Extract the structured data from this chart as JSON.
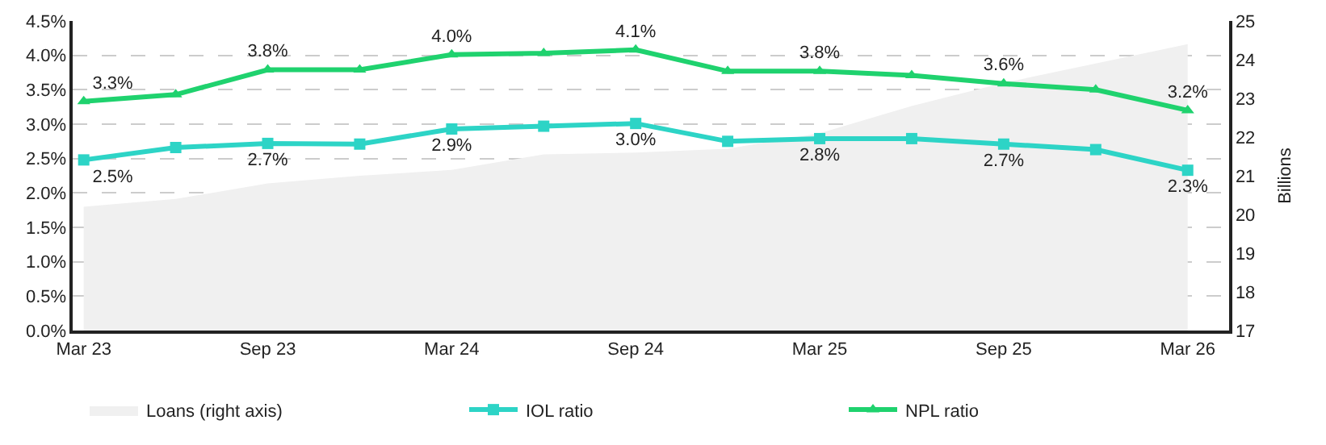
{
  "chart_data": {
    "type": "line",
    "categories": [
      "Mar 23",
      null,
      "Sep 23",
      null,
      "Mar 24",
      null,
      "Sep 24",
      null,
      "Mar 25",
      null,
      "Sep 25",
      null,
      "Mar 26"
    ],
    "series": [
      {
        "name": "Loans (right axis)",
        "type": "area",
        "axis": "y2",
        "color": "#f0f0f0",
        "marker": "none",
        "values": [
          20.2,
          20.4,
          20.8,
          21.0,
          21.15,
          21.55,
          21.6,
          21.7,
          22.1,
          22.8,
          23.4,
          23.9,
          24.4
        ]
      },
      {
        "name": "IOL ratio",
        "color": "#2dd4c6",
        "marker": "square",
        "values": [
          2.48,
          2.66,
          2.72,
          2.71,
          2.93,
          2.97,
          3.01,
          2.75,
          2.79,
          2.79,
          2.71,
          2.63,
          2.33
        ],
        "value_labels": [
          "2.5%",
          null,
          "2.7%",
          null,
          "2.9%",
          null,
          "3.0%",
          null,
          "2.8%",
          null,
          "2.7%",
          null,
          "2.3%"
        ]
      },
      {
        "name": "NPL ratio",
        "color": "#1fd26e",
        "marker": "triangle",
        "values": [
          3.33,
          3.43,
          3.79,
          3.79,
          4.01,
          4.03,
          4.08,
          3.77,
          3.77,
          3.71,
          3.59,
          3.5,
          3.2
        ],
        "value_labels": [
          "3.3%",
          null,
          "3.8%",
          null,
          "4.0%",
          null,
          "4.1%",
          null,
          "3.8%",
          null,
          "3.6%",
          null,
          "3.2%"
        ]
      }
    ],
    "ylim": [
      0,
      4.5
    ],
    "yticks": [
      {
        "value": 0,
        "label": "0.0%"
      },
      {
        "value": 0.5,
        "label": "0.5%"
      },
      {
        "value": 1,
        "label": "1.0%"
      },
      {
        "value": 1.5,
        "label": "1.5%"
      },
      {
        "value": 2,
        "label": "2.0%"
      },
      {
        "value": 2.5,
        "label": "2.5%"
      },
      {
        "value": 3,
        "label": "3.0%"
      },
      {
        "value": 3.5,
        "label": "3.5%"
      },
      {
        "value": 4,
        "label": "4.0%"
      },
      {
        "value": 4.5,
        "label": "4.5%"
      }
    ],
    "y2lim": [
      17,
      25
    ],
    "y2ticks": [
      17,
      18,
      19,
      20,
      21,
      22,
      23,
      24,
      25
    ],
    "y2label": "Billions",
    "grid": "y",
    "line_style": "solid",
    "legend": "bottom"
  }
}
